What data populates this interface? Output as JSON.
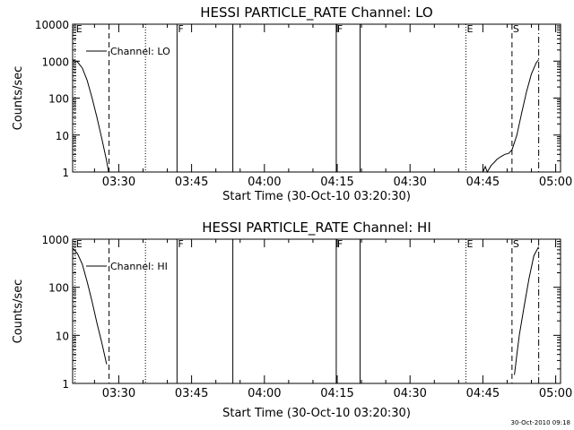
{
  "footer_timestamp": "30-Oct-2010 09:18",
  "chart_data": [
    {
      "type": "line",
      "title": "HESSI PARTICLE_RATE Channel: LO",
      "xlabel": "Start Time (30-Oct-10 03:20:30)",
      "ylabel": "Counts/sec",
      "yscale": "log",
      "ylim": [
        1,
        10000
      ],
      "yticks": [
        {
          "value": 1,
          "label": "1"
        },
        {
          "value": 10,
          "label": "10"
        },
        {
          "value": 100,
          "label": "100"
        },
        {
          "value": 1000,
          "label": "1000"
        },
        {
          "value": 10000,
          "label": "10000"
        }
      ],
      "xlim_minutes": [
        0,
        100.5
      ],
      "xticks": [
        {
          "minutes": 9.5,
          "label": "03:30"
        },
        {
          "minutes": 24.5,
          "label": "03:45"
        },
        {
          "minutes": 39.5,
          "label": "04:00"
        },
        {
          "minutes": 54.5,
          "label": "04:15"
        },
        {
          "minutes": 69.5,
          "label": "04:30"
        },
        {
          "minutes": 84.5,
          "label": "04:45"
        },
        {
          "minutes": 99.5,
          "label": "05:00"
        }
      ],
      "legend": {
        "label": "Channel: LO",
        "placement": "top-left"
      },
      "markers": [
        {
          "minutes": 0.5,
          "style": "dotted",
          "label": "E"
        },
        {
          "minutes": 7.5,
          "style": "dashed",
          "label": ""
        },
        {
          "minutes": 15,
          "style": "dotted",
          "label": ""
        },
        {
          "minutes": 21.5,
          "style": "solid",
          "label": "F"
        },
        {
          "minutes": 33,
          "style": "solid",
          "label": ""
        },
        {
          "minutes": 54.3,
          "style": "solid",
          "label": "F"
        },
        {
          "minutes": 59.2,
          "style": "solid",
          "label": ""
        },
        {
          "minutes": 81,
          "style": "dotted",
          "label": "E"
        },
        {
          "minutes": 90.5,
          "style": "dashed",
          "label": "S"
        },
        {
          "minutes": 96,
          "style": "dashdot",
          "label": ""
        }
      ],
      "series": [
        {
          "segments": [
            [
              {
                "minutes": 0,
                "value": 1100
              },
              {
                "minutes": 1,
                "value": 950
              },
              {
                "minutes": 2,
                "value": 650
              },
              {
                "minutes": 3,
                "value": 300
              },
              {
                "minutes": 4,
                "value": 100
              },
              {
                "minutes": 5,
                "value": 30
              },
              {
                "minutes": 6,
                "value": 8
              },
              {
                "minutes": 7,
                "value": 2
              },
              {
                "minutes": 7.4,
                "value": 1
              }
            ],
            [
              {
                "minutes": 84.5,
                "value": 1
              },
              {
                "minutes": 85,
                "value": 1.4
              },
              {
                "minutes": 85.4,
                "value": 1
              },
              {
                "minutes": 86.2,
                "value": 1.5
              },
              {
                "minutes": 86.8,
                "value": 1.8
              },
              {
                "minutes": 87.4,
                "value": 2.2
              },
              {
                "minutes": 88.2,
                "value": 2.6
              },
              {
                "minutes": 89,
                "value": 3
              },
              {
                "minutes": 89.8,
                "value": 3.2
              },
              {
                "minutes": 90.5,
                "value": 4
              },
              {
                "minutes": 91.5,
                "value": 10
              },
              {
                "minutes": 92.5,
                "value": 40
              },
              {
                "minutes": 93.5,
                "value": 150
              },
              {
                "minutes": 94.5,
                "value": 450
              },
              {
                "minutes": 95.5,
                "value": 900
              },
              {
                "minutes": 96,
                "value": 1100
              }
            ]
          ]
        }
      ]
    },
    {
      "type": "line",
      "title": "HESSI PARTICLE_RATE Channel: HI",
      "xlabel": "Start Time (30-Oct-10 03:20:30)",
      "ylabel": "Counts/sec",
      "yscale": "log",
      "ylim": [
        1,
        1000
      ],
      "yticks": [
        {
          "value": 1,
          "label": "1"
        },
        {
          "value": 10,
          "label": "10"
        },
        {
          "value": 100,
          "label": "100"
        },
        {
          "value": 1000,
          "label": "1000"
        }
      ],
      "xlim_minutes": [
        0,
        100.5
      ],
      "xticks": [
        {
          "minutes": 9.5,
          "label": "03:30"
        },
        {
          "minutes": 24.5,
          "label": "03:45"
        },
        {
          "minutes": 39.5,
          "label": "04:00"
        },
        {
          "minutes": 54.5,
          "label": "04:15"
        },
        {
          "minutes": 69.5,
          "label": "04:30"
        },
        {
          "minutes": 84.5,
          "label": "04:45"
        },
        {
          "minutes": 99.5,
          "label": "05:00"
        }
      ],
      "legend": {
        "label": "Channel: HI",
        "placement": "top-left"
      },
      "markers": [
        {
          "minutes": 0.5,
          "style": "dotted",
          "label": "E"
        },
        {
          "minutes": 7.5,
          "style": "dashed",
          "label": ""
        },
        {
          "minutes": 15,
          "style": "dotted",
          "label": ""
        },
        {
          "minutes": 21.5,
          "style": "solid",
          "label": "F"
        },
        {
          "minutes": 33,
          "style": "solid",
          "label": ""
        },
        {
          "minutes": 54.3,
          "style": "solid",
          "label": "F"
        },
        {
          "minutes": 59.2,
          "style": "solid",
          "label": ""
        },
        {
          "minutes": 81,
          "style": "dotted",
          "label": "E"
        },
        {
          "minutes": 90.5,
          "style": "dashed",
          "label": "S"
        },
        {
          "minutes": 96,
          "style": "dashdot",
          "label": ""
        }
      ],
      "series": [
        {
          "segments": [
            [
              {
                "minutes": 0,
                "value": 650
              },
              {
                "minutes": 1,
                "value": 500
              },
              {
                "minutes": 2,
                "value": 300
              },
              {
                "minutes": 3,
                "value": 130
              },
              {
                "minutes": 4,
                "value": 50
              },
              {
                "minutes": 5,
                "value": 18
              },
              {
                "minutes": 6,
                "value": 7
              },
              {
                "minutes": 7,
                "value": 2.5
              }
            ],
            [
              {
                "minutes": 91,
                "value": 1.5
              },
              {
                "minutes": 91.5,
                "value": 4
              },
              {
                "minutes": 92,
                "value": 10
              },
              {
                "minutes": 93,
                "value": 40
              },
              {
                "minutes": 94,
                "value": 150
              },
              {
                "minutes": 95,
                "value": 450
              },
              {
                "minutes": 96,
                "value": 700
              }
            ]
          ]
        }
      ]
    }
  ]
}
